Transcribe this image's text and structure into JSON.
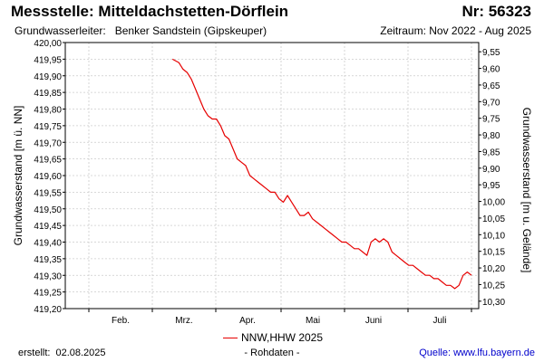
{
  "header": {
    "title": "Messstelle: Mitteldachstetten-Dörflein",
    "number": "Nr: 56323",
    "aquifer_label": "Grundwasserleiter:",
    "aquifer_value": "Benker Sandstein (Gipskeuper)",
    "period": "Zeitraum: Nov 2022 - Aug 2025"
  },
  "footer": {
    "created_label": "erstellt:",
    "created_date": "02.08.2025",
    "raw_note": "- Rohdaten -",
    "source_label": "Quelle:",
    "source_url": "www.lfu.bayern.de"
  },
  "colors": {
    "series": "#e60000",
    "grid": "#cccccc",
    "source": "#0000cc"
  },
  "chart_data": {
    "type": "line",
    "ylabel_left": "Grundwasserstand [m ü. NN]",
    "ylabel_right": "Grundwasserstand [m u. Gelände]",
    "ylim_left": [
      419.2,
      420.0
    ],
    "ylim_right": [
      9.3,
      9.55
    ],
    "yticks_left": [
      "419,20",
      "419,25",
      "419,30",
      "419,35",
      "419,40",
      "419,45",
      "419,50",
      "419,55",
      "419,60",
      "419,65",
      "419,70",
      "419,75",
      "419,80",
      "419,85",
      "419,90",
      "419,95",
      "420,00"
    ],
    "yticks_right": [
      "9,55",
      "9,60",
      "9,65",
      "9,70",
      "9,75",
      "9,80",
      "9,85",
      "9,90",
      "9,95",
      "10,00",
      "10,05",
      "10,10",
      "10,15",
      "10,20",
      "10,25",
      "10,30"
    ],
    "x_months": [
      "Feb.",
      "Mrz.",
      "Apr.",
      "Mai",
      "Juni",
      "Juli"
    ],
    "grid": true,
    "legend_position": "bottom-center",
    "series": [
      {
        "name": "NNW,HHW 2025",
        "color": "#e60000",
        "x": [
          71,
          74,
          76,
          78,
          80,
          82,
          84,
          86,
          88,
          90,
          92,
          94,
          96,
          98,
          100,
          102,
          104,
          106,
          108,
          110,
          112,
          114,
          116,
          118,
          120,
          122,
          124,
          126,
          128,
          130,
          132,
          134,
          136,
          138,
          140,
          142,
          144,
          146,
          148,
          150,
          152,
          154,
          156,
          158,
          160,
          162,
          164,
          166,
          168,
          170,
          172,
          174,
          176,
          178,
          180,
          182,
          184,
          186,
          188,
          190,
          192,
          194,
          196,
          198,
          200,
          202,
          204,
          206,
          208,
          210,
          212,
          214
        ],
        "y": [
          419.95,
          419.94,
          419.92,
          419.91,
          419.89,
          419.86,
          419.83,
          419.8,
          419.78,
          419.77,
          419.77,
          419.75,
          419.72,
          419.71,
          419.68,
          419.65,
          419.64,
          419.63,
          419.6,
          419.59,
          419.58,
          419.57,
          419.56,
          419.55,
          419.55,
          419.53,
          419.52,
          419.54,
          419.52,
          419.5,
          419.48,
          419.48,
          419.49,
          419.47,
          419.46,
          419.45,
          419.44,
          419.43,
          419.42,
          419.41,
          419.4,
          419.4,
          419.39,
          419.38,
          419.38,
          419.37,
          419.36,
          419.4,
          419.41,
          419.4,
          419.41,
          419.4,
          419.37,
          419.36,
          419.35,
          419.34,
          419.33,
          419.33,
          419.32,
          419.31,
          419.3,
          419.3,
          419.29,
          419.29,
          419.28,
          419.27,
          419.27,
          419.26,
          419.27,
          419.3,
          419.31,
          419.3
        ]
      }
    ]
  }
}
